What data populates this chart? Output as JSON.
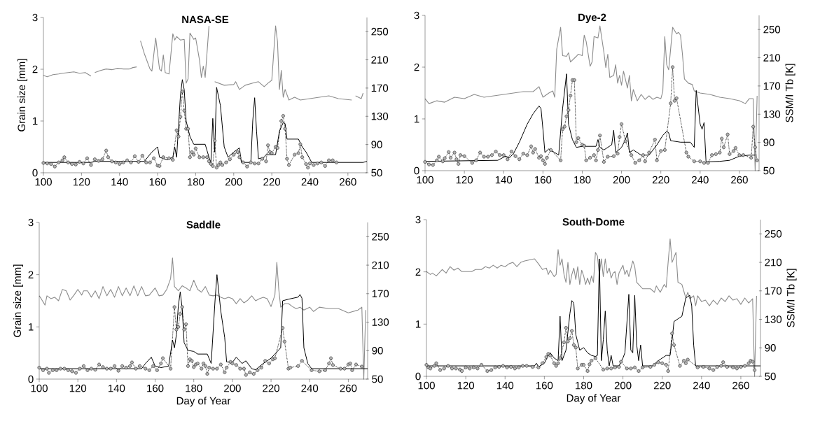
{
  "chart_data": [
    {
      "type": "line",
      "title": "NASA-SE",
      "ylabel": "Grain size [mm]",
      "xlim": [
        100,
        270
      ],
      "xticks": [
        100,
        120,
        140,
        160,
        180,
        200,
        220,
        240,
        260
      ],
      "ylim": [
        0,
        3
      ],
      "yticks": [
        0,
        1,
        2,
        3
      ],
      "y2lim": [
        50,
        270
      ],
      "y2ticks": [
        50,
        90,
        130,
        170,
        210,
        250
      ],
      "series": [
        {
          "axis": "y2",
          "color": "#8c8c8c",
          "marker": "none",
          "line_style": "solid",
          "x": [
            100,
            102,
            105,
            108,
            110,
            113,
            116,
            119,
            122,
            125,
            126,
            127,
            130,
            133,
            136,
            139,
            142,
            145,
            147,
            149,
            150,
            151,
            153,
            156,
            157,
            159,
            161,
            162,
            163,
            164,
            166,
            168,
            169,
            170,
            172,
            174,
            175,
            176,
            177,
            179,
            180,
            182,
            183,
            184,
            185,
            187,
            188,
            190,
            195,
            200,
            201,
            203,
            206,
            210,
            213,
            216,
            218,
            220,
            222,
            223,
            224,
            225,
            226,
            227,
            229,
            232,
            235,
            240,
            245,
            250,
            255,
            262,
            263,
            264,
            267,
            268
          ],
          "values": [
            188,
            186,
            189,
            190,
            191,
            192,
            193,
            191,
            192,
            187,
            null,
            192,
            195,
            197,
            196,
            198,
            197,
            197,
            199,
            200,
            null,
            237,
            219,
            197,
            194,
            241,
            197,
            194,
            217,
            192,
            190,
            247,
            238,
            243,
            238,
            239,
            177,
            183,
            248,
            239,
            241,
            210,
            185,
            201,
            185,
            258,
            null,
            179,
            174,
            175,
            179,
            168,
            174,
            177,
            179,
            172,
            177,
            181,
            258,
            236,
            168,
            195,
            157,
            168,
            153,
            157,
            153,
            155,
            157,
            159,
            155,
            153,
            null,
            159,
            155,
            163
          ]
        },
        {
          "axis": "y",
          "color": "#000000",
          "marker": "none",
          "line_style": "solid",
          "x": [
            100,
            125,
            127,
            153,
            157,
            160,
            161,
            165,
            168,
            169,
            170,
            172,
            173,
            174,
            175,
            177,
            179,
            185,
            187,
            188,
            189,
            190,
            191,
            193,
            195,
            197,
            200,
            203,
            204,
            209,
            210,
            211,
            212,
            213,
            216,
            217,
            222,
            224,
            226,
            227,
            228,
            234,
            236,
            238,
            241,
            268,
            270
          ],
          "values": [
            0.2,
            0.2,
            0.22,
            0.22,
            0.4,
            0.5,
            0.3,
            0.25,
            0.3,
            0.5,
            0.3,
            1.5,
            1.8,
            1.6,
            1.0,
            0.7,
            0.55,
            0.55,
            0.3,
            0.2,
            1.05,
            0.4,
            1.65,
            1.3,
            0.5,
            0.3,
            0.4,
            0.48,
            0.2,
            0.2,
            1.0,
            1.45,
            0.8,
            0.27,
            0.3,
            0.35,
            0.35,
            0.8,
            0.97,
            0.95,
            0.65,
            0.65,
            0.5,
            0.4,
            0.2,
            0.2,
            0.22
          ]
        },
        {
          "axis": "y",
          "color": "#000000",
          "marker": "circle",
          "line_style": "dotted",
          "x": [
            100,
            102,
            104,
            106,
            108,
            110,
            111,
            113,
            115,
            117,
            119,
            121,
            123,
            125,
            127,
            129,
            131,
            133,
            134,
            136,
            138,
            140,
            142,
            144,
            146,
            148,
            150,
            152,
            154,
            156,
            158,
            160,
            161,
            163,
            166,
            168,
            170,
            171,
            172,
            173,
            174,
            175,
            176,
            177,
            178,
            179,
            180,
            182,
            184,
            186,
            187,
            188,
            189,
            190,
            191,
            192,
            193,
            194,
            196,
            198,
            200,
            202,
            203,
            205,
            207,
            209,
            211,
            213,
            215,
            217,
            218,
            219,
            220,
            222,
            223,
            225,
            226,
            227,
            228,
            229,
            232,
            234,
            235,
            236,
            238,
            239,
            240,
            242,
            244,
            246,
            248,
            250,
            252,
            254
          ],
          "values": [
            0.19,
            0.18,
            0.17,
            0.12,
            0.2,
            0.24,
            0.3,
            0.2,
            0.17,
            0.16,
            0.21,
            0.18,
            0.28,
            0.15,
            0.26,
            0.23,
            0.26,
            0.43,
            0.3,
            0.22,
            0.2,
            0.17,
            0.2,
            0.24,
            0.2,
            0.32,
            0.21,
            0.33,
            0.2,
            0.2,
            0.28,
            0.14,
            0.13,
            0.3,
            0.28,
            0.25,
            0.82,
            0.7,
            1.08,
            1.57,
            1.2,
            0.85,
            0.85,
            0.3,
            0.4,
            0.35,
            0.47,
            0.3,
            0.3,
            0.3,
            0.22,
            0.17,
            0.13,
            0.62,
            0.1,
            0.15,
            0.2,
            0.15,
            0.2,
            0.26,
            0.35,
            0.4,
            0.3,
            0.2,
            0.12,
            0.2,
            0.18,
            0.18,
            0.27,
            0.22,
            0.53,
            0.4,
            0.38,
            0.5,
            0.48,
            1.0,
            1.1,
            0.85,
            0.27,
            0.15,
            0.35,
            0.38,
            0.55,
            0.3,
            0.17,
            0.1,
            0.18,
            0.15,
            0.18,
            0.2,
            0.13,
            0.24,
            0.24,
            0.2
          ]
        }
      ]
    },
    {
      "type": "line",
      "title": "Dye-2",
      "y2label": "SSM/I Tb [K]",
      "xlim": [
        100,
        270
      ],
      "xticks": [
        100,
        120,
        140,
        160,
        180,
        200,
        220,
        240,
        260
      ],
      "ylim": [
        0,
        3
      ],
      "yticks": [
        0,
        1,
        2,
        3
      ],
      "y2lim": [
        50,
        270
      ],
      "y2ticks": [
        50,
        90,
        130,
        170,
        210,
        250
      ],
      "series": [
        {
          "axis": "y2",
          "color": "#8c8c8c",
          "marker": "none",
          "line_style": "solid",
          "x": [
            100,
            102,
            106,
            110,
            115,
            120,
            125,
            130,
            135,
            140,
            145,
            150,
            155,
            158,
            160,
            163,
            165,
            166,
            167,
            169,
            170,
            172,
            173,
            174,
            177,
            178,
            180,
            181,
            182,
            184,
            185,
            186,
            188,
            189,
            191,
            192,
            193,
            194,
            196,
            197,
            198,
            199,
            200,
            201,
            203,
            204,
            205,
            206,
            208,
            210,
            212,
            214,
            216,
            218,
            220,
            221,
            222,
            223,
            224,
            226,
            228,
            229,
            230,
            231,
            232,
            234,
            236,
            237,
            240,
            245,
            250,
            255,
            260,
            263,
            265,
            267,
            268,
            269
          ],
          "values": [
            152,
            145,
            149,
            147,
            154,
            152,
            158,
            154,
            156,
            158,
            160,
            162,
            162,
            169,
            154,
            160,
            163,
            154,
            222,
            253,
            213,
            212,
            217,
            204,
            212,
            215,
            213,
            242,
            233,
            198,
            204,
            240,
            238,
            255,
            218,
            196,
            215,
            182,
            185,
            200,
            174,
            185,
            171,
            191,
            167,
            185,
            149,
            165,
            149,
            158,
            151,
            156,
            151,
            154,
            152,
            162,
            240,
            200,
            193,
            253,
            244,
            246,
            242,
            215,
            180,
            174,
            172,
            163,
            160,
            158,
            154,
            152,
            149,
            145,
            152,
            152,
            50,
            156
          ]
        },
        {
          "axis": "y",
          "color": "#000000",
          "marker": "none",
          "line_style": "solid",
          "x": [
            100,
            137,
            141,
            143,
            145,
            148,
            152,
            155,
            158,
            159,
            160,
            161,
            163,
            166,
            168,
            170,
            172,
            173,
            175,
            177,
            180,
            187,
            188,
            189,
            191,
            195,
            196,
            197,
            200,
            202,
            203,
            204,
            206,
            210,
            214,
            218,
            221,
            223,
            224,
            225,
            230,
            235,
            237,
            238,
            240,
            241,
            242,
            243,
            250,
            255,
            260,
            265,
            268
          ],
          "values": [
            0.18,
            0.2,
            0.28,
            0.25,
            0.33,
            0.55,
            0.9,
            1.1,
            1.25,
            1.2,
            0.8,
            0.35,
            0.42,
            0.35,
            0.3,
            1.2,
            1.87,
            0.9,
            0.6,
            0.45,
            0.47,
            0.47,
            0.6,
            0.45,
            0.4,
            0.5,
            0.78,
            0.35,
            0.45,
            0.6,
            0.73,
            0.35,
            0.4,
            0.3,
            0.3,
            0.5,
            0.68,
            0.76,
            0.73,
            0.58,
            0.55,
            0.55,
            0.45,
            1.55,
            0.9,
            0.8,
            0.93,
            0.17,
            0.18,
            0.2,
            0.28,
            0.3,
            0.3
          ]
        },
        {
          "axis": "y",
          "color": "#000000",
          "marker": "circle",
          "line_style": "dotted",
          "x": [
            100,
            102,
            104,
            106,
            107,
            109,
            110,
            112,
            113,
            115,
            116,
            117,
            118,
            120,
            124,
            126,
            128,
            130,
            132,
            134,
            136,
            138,
            140,
            142,
            144,
            146,
            148,
            150,
            152,
            154,
            155,
            156,
            158,
            159,
            160,
            161,
            162,
            164,
            169,
            170,
            171,
            172,
            173,
            174,
            175,
            176,
            177,
            178,
            180,
            181,
            182,
            184,
            186,
            187,
            188,
            189,
            191,
            193,
            196,
            198,
            199,
            200,
            202,
            205,
            207,
            209,
            211,
            212,
            214,
            217,
            218,
            220,
            222,
            225,
            226,
            227,
            228,
            233,
            234,
            237,
            240,
            242,
            244,
            246,
            248,
            250,
            251,
            252,
            254,
            255,
            257,
            258,
            260,
            262,
            266,
            267,
            268,
            269
          ],
          "values": [
            0.17,
            0.12,
            0.11,
            0.2,
            0.27,
            0.18,
            0.24,
            0.36,
            0.25,
            0.35,
            0.22,
            0.13,
            0.3,
            0.28,
            0.15,
            0.2,
            0.35,
            0.27,
            0.27,
            0.3,
            0.37,
            0.3,
            0.3,
            0.22,
            0.37,
            0.28,
            0.22,
            0.33,
            0.3,
            0.47,
            0.35,
            0.42,
            0.25,
            0.28,
            0.2,
            0.13,
            0.25,
            0.4,
            0.2,
            0.8,
            0.85,
            1.05,
            1.17,
            1.45,
            1.75,
            1.75,
            0.55,
            0.63,
            0.5,
            0.48,
            0.2,
            0.25,
            0.3,
            0.2,
            0.4,
            0.68,
            0.17,
            0.27,
            0.28,
            0.33,
            0.65,
            0.9,
            0.57,
            0.3,
            0.15,
            0.2,
            0.3,
            0.18,
            0.35,
            0.6,
            0.2,
            0.38,
            0.4,
            1.3,
            2.0,
            1.35,
            1.4,
            0.35,
            0.27,
            0.18,
            0.18,
            0.15,
            0.15,
            0.3,
            0.32,
            0.35,
            0.62,
            0.45,
            0.7,
            0.32,
            0.38,
            0.44,
            0.3,
            0.3,
            0.25,
            0.85,
            0.45,
            0.2
          ]
        }
      ]
    },
    {
      "type": "line",
      "title": "Saddle",
      "xlabel": "Day of Year",
      "ylabel": "Grain size [mm]",
      "xlim": [
        100,
        270
      ],
      "xticks": [
        100,
        120,
        140,
        160,
        180,
        200,
        220,
        240,
        260
      ],
      "ylim": [
        0,
        3
      ],
      "yticks": [
        0,
        1,
        2,
        3
      ],
      "y2lim": [
        50,
        270
      ],
      "y2ticks": [
        50,
        90,
        130,
        170,
        210,
        250
      ],
      "series": [
        {
          "axis": "y2",
          "color": "#8c8c8c",
          "marker": "none",
          "line_style": "solid",
          "x": [
            100,
            101,
            103,
            104,
            106,
            108,
            110,
            112,
            114,
            116,
            118,
            120,
            122,
            123,
            125,
            127,
            129,
            131,
            133,
            135,
            137,
            139,
            141,
            143,
            145,
            147,
            149,
            151,
            153,
            155,
            157,
            160,
            162,
            164,
            166,
            168,
            169,
            170,
            172,
            174,
            176,
            178,
            180,
            182,
            184,
            186,
            188,
            190,
            192,
            194,
            196,
            198,
            200,
            202,
            204,
            206,
            208,
            210,
            212,
            214,
            216,
            218,
            220,
            222,
            223,
            224,
            225,
            227,
            229,
            231,
            233,
            235,
            237,
            240,
            242,
            245,
            250,
            255,
            260,
            265,
            267,
            268,
            269
          ],
          "values": [
            167,
            163,
            154,
            167,
            163,
            165,
            160,
            176,
            174,
            161,
            168,
            176,
            168,
            174,
            174,
            165,
            174,
            163,
            180,
            167,
            176,
            165,
            180,
            167,
            178,
            167,
            181,
            167,
            180,
            167,
            168,
            178,
            167,
            168,
            176,
            191,
            220,
            180,
            174,
            181,
            178,
            174,
            189,
            176,
            172,
            180,
            168,
            167,
            168,
            165,
            163,
            165,
            163,
            156,
            163,
            157,
            161,
            167,
            160,
            163,
            165,
            163,
            152,
            168,
            214,
            176,
            151,
            156,
            156,
            152,
            149,
            151,
            147,
            151,
            145,
            151,
            149,
            149,
            143,
            147,
            151,
            50,
            147
          ]
        },
        {
          "axis": "y",
          "color": "#000000",
          "marker": "none",
          "line_style": "solid",
          "x": [
            100,
            153,
            155,
            158,
            160,
            163,
            167,
            169,
            170,
            171,
            172,
            173,
            174,
            175,
            177,
            180,
            182,
            187,
            189,
            191,
            192,
            194,
            196,
            197,
            200,
            202,
            205,
            207,
            210,
            212,
            216,
            220,
            223,
            225,
            226,
            229,
            234,
            235,
            236,
            237,
            239,
            241,
            245,
            268,
            270
          ],
          "values": [
            0.2,
            0.2,
            0.3,
            0.42,
            0.25,
            0.22,
            0.25,
            0.75,
            0.6,
            0.85,
            1.4,
            1.67,
            1.35,
            0.7,
            0.55,
            0.53,
            0.48,
            0.48,
            0.3,
            1.5,
            2.0,
            1.3,
            0.8,
            0.33,
            0.32,
            0.42,
            0.3,
            0.35,
            0.2,
            0.18,
            0.3,
            0.4,
            0.52,
            0.6,
            1.5,
            1.53,
            1.57,
            1.62,
            1.55,
            0.6,
            0.3,
            0.2,
            0.2,
            0.2,
            0.2
          ]
        },
        {
          "axis": "y",
          "color": "#000000",
          "marker": "circle",
          "line_style": "dotted",
          "x": [
            100,
            102,
            104,
            105,
            107,
            109,
            111,
            113,
            115,
            117,
            119,
            121,
            123,
            125,
            127,
            129,
            131,
            133,
            135,
            137,
            139,
            141,
            143,
            145,
            147,
            148,
            150,
            152,
            155,
            157,
            159,
            161,
            163,
            164,
            168,
            170,
            171,
            172,
            173,
            174,
            175,
            176,
            177,
            178,
            179,
            180,
            181,
            182,
            184,
            185,
            186,
            187,
            188,
            190,
            192,
            194,
            196,
            197,
            199,
            200,
            202,
            204,
            206,
            207,
            209,
            211,
            213,
            215,
            217,
            219,
            221,
            222,
            226,
            227,
            229,
            230,
            234,
            236,
            241,
            245,
            248,
            250,
            251,
            252,
            256,
            258,
            260,
            261,
            262,
            264,
            267
          ],
          "values": [
            0.22,
            0.17,
            0.2,
            0.12,
            0.17,
            0.17,
            0.2,
            0.2,
            0.17,
            0.15,
            0.12,
            0.2,
            0.25,
            0.17,
            0.2,
            0.18,
            0.28,
            0.23,
            0.2,
            0.2,
            0.25,
            0.16,
            0.25,
            0.22,
            0.25,
            0.32,
            0.2,
            0.25,
            0.2,
            0.17,
            0.25,
            0.17,
            0.3,
            0.4,
            0.2,
            1.38,
            0.95,
            1.0,
            1.25,
            1.38,
            0.95,
            1.05,
            0.25,
            0.38,
            0.35,
            0.23,
            0.28,
            0.3,
            0.2,
            0.3,
            0.25,
            0.1,
            0.22,
            0.2,
            0.2,
            0.28,
            0.13,
            0.22,
            0.33,
            0.3,
            0.27,
            0.2,
            0.2,
            0.08,
            0.13,
            0.1,
            0.17,
            0.22,
            0.35,
            0.3,
            0.38,
            0.4,
            0.98,
            0.72,
            0.2,
            0.22,
            0.25,
            0.35,
            0.17,
            0.15,
            0.17,
            0.3,
            0.4,
            0.27,
            0.2,
            0.2,
            0.28,
            0.3,
            0.17,
            0.28,
            0.24
          ]
        }
      ]
    },
    {
      "type": "line",
      "title": "South-Dome",
      "xlabel": "Day of Year",
      "y2label": "SSM/I Tb [K]",
      "xlim": [
        100,
        270
      ],
      "xticks": [
        100,
        120,
        140,
        160,
        180,
        200,
        220,
        240,
        260
      ],
      "ylim": [
        0,
        3
      ],
      "yticks": [
        0,
        1,
        2,
        3
      ],
      "y2lim": [
        50,
        270
      ],
      "y2ticks": [
        50,
        90,
        130,
        170,
        210,
        250
      ],
      "series": [
        {
          "axis": "y2",
          "color": "#8c8c8c",
          "marker": "none",
          "line_style": "solid",
          "x": [
            100,
            102,
            103,
            105,
            108,
            110,
            112,
            114,
            116,
            118,
            120,
            123,
            125,
            128,
            130,
            132,
            134,
            136,
            138,
            140,
            142,
            144,
            146,
            148,
            150,
            155,
            157,
            159,
            161,
            162,
            163,
            165,
            166,
            167,
            168,
            169,
            170,
            171,
            172,
            173,
            174,
            175,
            176,
            177,
            178,
            179,
            180,
            181,
            182,
            183,
            184,
            185,
            186,
            187,
            188,
            189,
            190,
            191,
            192,
            193,
            194,
            195,
            196,
            197,
            198,
            200,
            201,
            202,
            203,
            205,
            206,
            207,
            208,
            210,
            214,
            216,
            217,
            219,
            221,
            222,
            223,
            224,
            225,
            227,
            228,
            230,
            232,
            233,
            234,
            236,
            237,
            238,
            240,
            242,
            244,
            246,
            248,
            250,
            252,
            254,
            256,
            258,
            260,
            262,
            264,
            266,
            267,
            268
          ],
          "values": [
            197,
            193,
            195,
            191,
            200,
            195,
            204,
            199,
            202,
            197,
            197,
            197,
            200,
            200,
            204,
            202,
            206,
            202,
            206,
            204,
            208,
            210,
            204,
            210,
            212,
            215,
            208,
            200,
            202,
            193,
            199,
            190,
            193,
            228,
            206,
            215,
            193,
            182,
            210,
            179,
            193,
            202,
            186,
            204,
            179,
            199,
            191,
            179,
            188,
            179,
            191,
            182,
            224,
            219,
            193,
            215,
            190,
            215,
            195,
            202,
            188,
            195,
            197,
            179,
            195,
            206,
            193,
            199,
            190,
            212,
            204,
            182,
            179,
            173,
            173,
            168,
            177,
            168,
            179,
            175,
            210,
            243,
            210,
            224,
            182,
            179,
            160,
            168,
            159,
            163,
            149,
            163,
            155,
            157,
            149,
            157,
            151,
            160,
            155,
            163,
            157,
            159,
            151,
            160,
            153,
            159,
            50,
            163
          ]
        },
        {
          "axis": "y",
          "color": "#000000",
          "marker": "none",
          "line_style": "solid",
          "x": [
            100,
            155,
            156,
            157,
            160,
            162,
            163,
            165,
            167,
            168,
            169,
            171,
            173,
            174,
            175,
            176,
            178,
            180,
            182,
            184,
            186,
            187,
            188,
            189,
            190,
            191,
            192,
            193,
            194,
            195,
            198,
            200,
            201,
            203,
            204,
            205,
            206,
            207,
            208,
            209,
            210,
            212,
            215,
            218,
            222,
            224,
            225,
            226,
            228,
            230,
            232,
            234,
            235,
            236,
            237,
            240,
            268,
            270
          ],
          "values": [
            0.2,
            0.2,
            0.25,
            0.18,
            0.25,
            0.4,
            0.45,
            0.35,
            0.3,
            1.15,
            0.3,
            0.5,
            1.2,
            1.45,
            1.4,
            0.8,
            0.5,
            0.55,
            0.45,
            0.4,
            0.38,
            0.4,
            2.25,
            0.3,
            0.7,
            1.25,
            0.5,
            0.2,
            0.4,
            0.2,
            0.2,
            0.35,
            0.45,
            1.57,
            0.5,
            0.45,
            1.55,
            0.6,
            0.3,
            0.6,
            0.2,
            0.2,
            0.2,
            0.3,
            0.4,
            0.4,
            0.7,
            1.05,
            1.1,
            1.15,
            1.5,
            1.55,
            1.35,
            0.6,
            0.2,
            0.2,
            0.2,
            0.2
          ]
        },
        {
          "axis": "y",
          "color": "#000000",
          "marker": "circle",
          "line_style": "dotted",
          "x": [
            100,
            101,
            102,
            104,
            105,
            107,
            109,
            111,
            113,
            115,
            117,
            118,
            120,
            122,
            124,
            126,
            128,
            131,
            133,
            135,
            137,
            139,
            141,
            143,
            145,
            147,
            149,
            151,
            154,
            157,
            159,
            161,
            162,
            163,
            165,
            166,
            167,
            168,
            170,
            171,
            172,
            173,
            174,
            175,
            176,
            177,
            179,
            180,
            182,
            183,
            184,
            186,
            190,
            192,
            194,
            196,
            198,
            199,
            202,
            204,
            206,
            208,
            210,
            214,
            216,
            218,
            220,
            222,
            223,
            225,
            226,
            229,
            231,
            232,
            233,
            238,
            241,
            244,
            246,
            248,
            250,
            251,
            253,
            256,
            258,
            260,
            262,
            264,
            265,
            266,
            267
          ],
          "values": [
            0.22,
            0.17,
            0.15,
            0.2,
            0.25,
            0.12,
            0.15,
            0.2,
            0.15,
            0.15,
            0.13,
            0.1,
            0.17,
            0.15,
            0.17,
            0.15,
            0.22,
            0.1,
            0.12,
            0.17,
            0.18,
            0.2,
            0.17,
            0.18,
            0.15,
            0.17,
            0.2,
            0.2,
            0.18,
            0.17,
            0.25,
            0.37,
            0.43,
            0.4,
            0.25,
            0.2,
            0.25,
            0.35,
            0.65,
            0.93,
            0.67,
            0.73,
            0.87,
            0.6,
            0.55,
            0.15,
            0.22,
            0.22,
            0.1,
            0.23,
            0.3,
            0.35,
            0.13,
            0.15,
            0.15,
            0.17,
            0.18,
            0.28,
            0.15,
            0.15,
            0.17,
            0.1,
            0.17,
            0.18,
            0.22,
            0.27,
            0.25,
            0.22,
            0.1,
            0.82,
            0.6,
            0.2,
            0.3,
            0.25,
            0.32,
            0.17,
            0.18,
            0.15,
            0.12,
            0.18,
            0.2,
            0.27,
            0.18,
            0.17,
            0.15,
            0.18,
            0.2,
            0.25,
            0.3,
            0.28,
            0.12
          ]
        }
      ]
    }
  ]
}
